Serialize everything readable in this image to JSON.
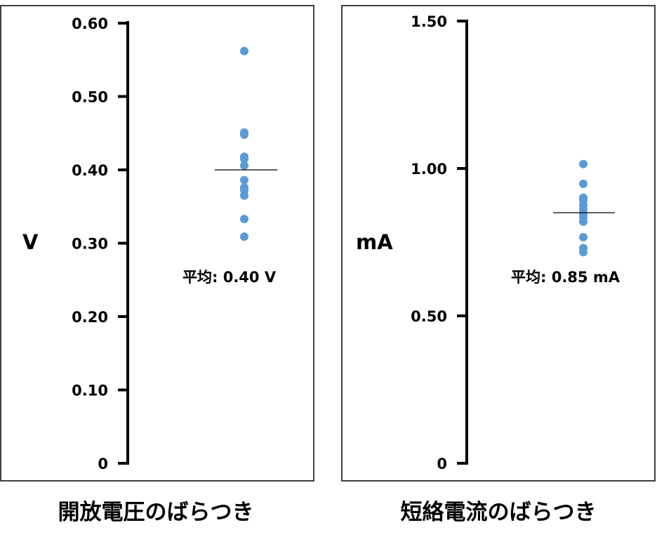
{
  "chart_data": [
    {
      "type": "scatter",
      "title": "開放電圧のばらつき",
      "ylabel": "V",
      "ylim": [
        0,
        0.6
      ],
      "y_ticks": [
        "0",
        "0.10",
        "0.20",
        "0.30",
        "0.40",
        "0.50",
        "0.60"
      ],
      "y_tick_values": [
        0,
        0.1,
        0.2,
        0.3,
        0.4,
        0.5,
        0.6
      ],
      "points": [
        0.562,
        0.451,
        0.448,
        0.418,
        0.415,
        0.406,
        0.386,
        0.376,
        0.372,
        0.365,
        0.333,
        0.309
      ],
      "mean": 0.4,
      "mean_label": "平均: 0.40 V",
      "point_color": "#5b9bd5"
    },
    {
      "type": "scatter",
      "title": "短絡電流のばらつき",
      "ylabel": "mA",
      "ylim": [
        0,
        1.5
      ],
      "y_ticks": [
        "0",
        "0.50",
        "1.00",
        "1.50"
      ],
      "y_tick_values": [
        0,
        0.5,
        1.0,
        1.5
      ],
      "points": [
        1.015,
        0.948,
        0.901,
        0.893,
        0.876,
        0.861,
        0.846,
        0.834,
        0.82,
        0.767,
        0.73,
        0.716
      ],
      "mean": 0.85,
      "mean_label": "平均: 0.85 mA",
      "point_color": "#5b9bd5"
    }
  ]
}
